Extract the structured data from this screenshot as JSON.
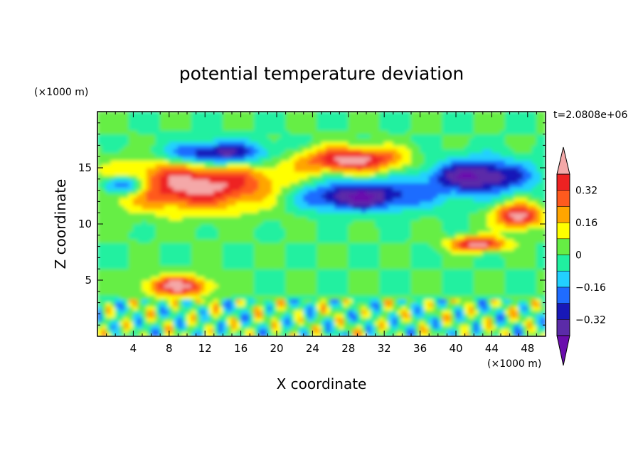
{
  "chart_data": {
    "type": "heatmap",
    "title": "potential temperature deviation",
    "xlabel": "X coordinate",
    "ylabel": "Z coordinate",
    "x_unit": "(×1000 m)",
    "y_unit": "(×1000 m)",
    "time_label": "t=2.0808e+06",
    "xlim": [
      0,
      50
    ],
    "ylim": [
      0,
      20
    ],
    "x_ticks": [
      4,
      8,
      12,
      16,
      20,
      24,
      28,
      32,
      36,
      40,
      44,
      48
    ],
    "y_ticks": [
      5,
      10,
      15
    ],
    "colorbar": {
      "tick_values": [
        0.32,
        0.16,
        0,
        -0.16,
        -0.32
      ],
      "tick_labels": [
        "0.32",
        "0.16",
        "0",
        "−0.16",
        "−0.32"
      ],
      "levels": [
        -0.4,
        -0.32,
        -0.24,
        -0.16,
        -0.08,
        0,
        0.08,
        0.16,
        0.24,
        0.32,
        0.4
      ],
      "colors": [
        "#6a0dad",
        "#5b2ba8",
        "#1818b8",
        "#1f6cff",
        "#22d0ff",
        "#20f0a0",
        "#66ee44",
        "#ffff00",
        "#ffa500",
        "#ff5a1e",
        "#ee2222",
        "#f4a8a8"
      ],
      "extend": "both"
    },
    "features": [
      {
        "x": [
          0,
          22
        ],
        "z": [
          11,
          16
        ],
        "value": 0.45
      },
      {
        "x": [
          22,
          35
        ],
        "z": [
          14.5,
          17
        ],
        "value": 0.45
      },
      {
        "x": [
          44,
          50
        ],
        "z": [
          9.5,
          12
        ],
        "value": 0.45
      },
      {
        "x": [
          39,
          46
        ],
        "z": [
          7.5,
          9
        ],
        "value": 0.45
      },
      {
        "x": [
          5,
          13
        ],
        "z": [
          3.5,
          5.5
        ],
        "value": 0.45
      },
      {
        "x": [
          7,
          20
        ],
        "z": [
          15,
          17.5
        ],
        "value": -0.42
      },
      {
        "x": [
          21,
          37
        ],
        "z": [
          11,
          14
        ],
        "value": -0.42
      },
      {
        "x": [
          36,
          49
        ],
        "z": [
          12.5,
          16
        ],
        "value": -0.42
      },
      {
        "x": [
          0,
          6
        ],
        "z": [
          12.5,
          14.5
        ],
        "value": -0.42
      }
    ]
  }
}
